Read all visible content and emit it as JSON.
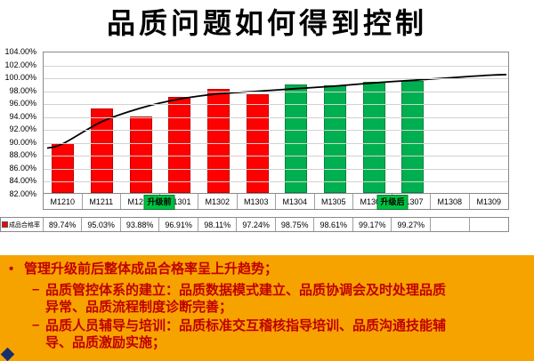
{
  "title": "品质问题如何得到控制",
  "chart_data": {
    "type": "bar",
    "title": "品质问题如何得到控制",
    "categories": [
      "M1210",
      "M1211",
      "M1212",
      "M1301",
      "M1302",
      "M1303",
      "M1304",
      "M1305",
      "M1306",
      "M1307",
      "M1308",
      "M1309"
    ],
    "series": [
      {
        "name": "成品合格率",
        "values": [
          89.74,
          95.03,
          93.88,
          96.91,
          98.11,
          97.24,
          98.75,
          98.61,
          99.17,
          99.27,
          null,
          null
        ],
        "labels": [
          "89.74%",
          "95.03%",
          "93.88%",
          "96.91%",
          "98.11%",
          "97.24%",
          "98.75%",
          "98.61%",
          "99.17%",
          "99.27%",
          "",
          ""
        ]
      }
    ],
    "bar_colors": [
      "#FF0000",
      "#FF0000",
      "#FF0000",
      "#FF0000",
      "#FF0000",
      "#FF0000",
      "#00B050",
      "#00B050",
      "#00B050",
      "#00B050",
      null,
      null
    ],
    "trend": [
      89.9,
      93.3,
      95.4,
      96.8,
      97.6,
      98.0,
      98.4,
      98.8,
      99.3,
      99.7,
      100.1,
      100.5
    ],
    "trend_color": "#000000",
    "ylim": [
      82,
      104
    ],
    "ytick_step": 2,
    "grid": true,
    "legend_position": "table-left",
    "legend_label": "成品合格率",
    "legend_color": "#FF0000",
    "annotations": [
      {
        "label": "升级前",
        "color": "#00C040",
        "boundary_index": 3
      },
      {
        "label": "升级后",
        "color": "#00C040",
        "boundary_index": 9
      }
    ]
  },
  "notes": {
    "accent_bg": "#F6A300",
    "text_color": "#C00000",
    "bullet_symbol": "•",
    "dash_symbol": "–",
    "bullet1": "管理升级前后整体成品合格率呈上升趋势；",
    "sub_items": [
      "品质管控体系的建立：品质数据模式建立、品质协调会及时处理品质异常、品质流程制度诊断完善；",
      "品质人员辅导与培训：品质标准交互稽核指导培训、品质沟通技能辅导、品质激励实施；"
    ]
  }
}
